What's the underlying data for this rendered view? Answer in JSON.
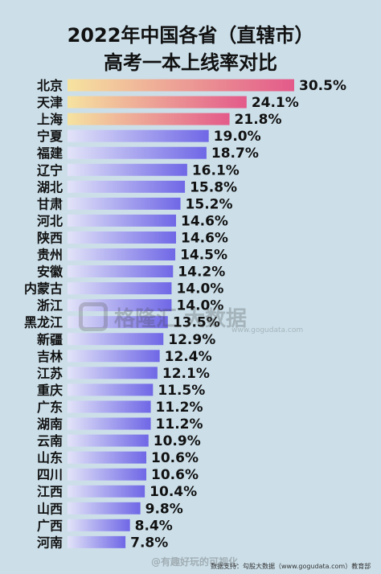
{
  "chart_data": {
    "type": "bar",
    "orientation": "horizontal",
    "title": "2022年中国各省（直辖市）",
    "subtitle": "高考一本上线率对比",
    "categories": [
      "北京",
      "天津",
      "上海",
      "宁夏",
      "福建",
      "辽宁",
      "湖北",
      "甘肃",
      "河北",
      "陕西",
      "贵州",
      "安徽",
      "内蒙古",
      "浙江",
      "黑龙江",
      "新疆",
      "吉林",
      "江苏",
      "重庆",
      "广东",
      "湖南",
      "云南",
      "山东",
      "四川",
      "江西",
      "山西",
      "广西",
      "河南"
    ],
    "values": [
      30.5,
      24.1,
      21.8,
      19.0,
      18.7,
      16.1,
      15.8,
      15.2,
      14.6,
      14.6,
      14.5,
      14.2,
      14.0,
      14.0,
      13.5,
      12.9,
      12.4,
      12.1,
      11.5,
      11.2,
      11.2,
      10.9,
      10.6,
      10.6,
      10.4,
      9.8,
      8.4,
      7.8
    ],
    "value_labels": [
      "30.5%",
      "24.1%",
      "21.8%",
      "19.0%",
      "18.7%",
      "16.1%",
      "15.8%",
      "15.2%",
      "14.6%",
      "14.6%",
      "14.5%",
      "14.2%",
      "14.0%",
      "14.0%",
      "13.5%",
      "12.9%",
      "12.4%",
      "12.1%",
      "11.5%",
      "11.2%",
      "11.2%",
      "10.9%",
      "10.6%",
      "10.6%",
      "10.4%",
      "9.8%",
      "8.4%",
      "7.8%"
    ],
    "unit": "%",
    "xlim": [
      0,
      30.5
    ],
    "grid": false,
    "legend": "none",
    "colors": {
      "highlight": "#e35a8a",
      "highlight_start": "#f6e3a0",
      "normal": "#6f67e6",
      "normal_start": "#e2e3f8"
    },
    "highlight_count": 3
  },
  "watermark": {
    "text": "格隆汇 大数据",
    "sub": "www.gogudata.com"
  },
  "footer": {
    "source": "数据支持：勾股大数据（www.gogudata.com）教育部"
  },
  "weibo_mark": "@有趣好玩的可视化"
}
